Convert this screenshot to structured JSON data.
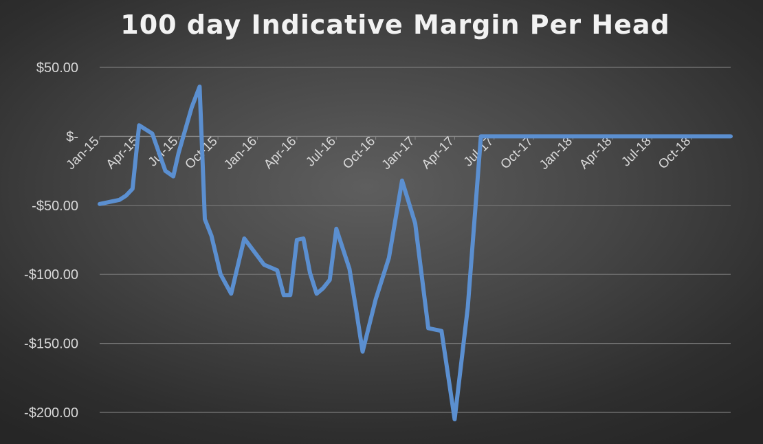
{
  "chart_data": {
    "type": "line",
    "title": "100 day Indicative Margin Per Head",
    "xlabel": "",
    "ylabel": "",
    "ylim": [
      -200,
      50
    ],
    "y_ticks": [
      {
        "value": 50,
        "label": "$50.00"
      },
      {
        "value": 0,
        "label": "$-"
      },
      {
        "value": -50,
        "label": "-$50.00"
      },
      {
        "value": -100,
        "label": "-$100.00"
      },
      {
        "value": -150,
        "label": "-$150.00"
      },
      {
        "value": -200,
        "label": "-$200.00"
      }
    ],
    "x_ticks": [
      {
        "value": 0,
        "label": "Jan-15"
      },
      {
        "value": 3,
        "label": "Apr-15"
      },
      {
        "value": 6,
        "label": "Jul-15"
      },
      {
        "value": 9,
        "label": "Oct-15"
      },
      {
        "value": 12,
        "label": "Jan-16"
      },
      {
        "value": 15,
        "label": "Apr-16"
      },
      {
        "value": 18,
        "label": "Jul-16"
      },
      {
        "value": 21,
        "label": "Oct-16"
      },
      {
        "value": 24,
        "label": "Jan-17"
      },
      {
        "value": 27,
        "label": "Apr-17"
      },
      {
        "value": 30,
        "label": "Jul-17"
      },
      {
        "value": 33,
        "label": "Oct-17"
      },
      {
        "value": 36,
        "label": "Jan-18"
      },
      {
        "value": 39,
        "label": "Apr-18"
      },
      {
        "value": 42,
        "label": "Jul-18"
      },
      {
        "value": 45,
        "label": "Oct-18"
      }
    ],
    "xlim": [
      0,
      48
    ],
    "grid": true,
    "line_color": "#5b8fd0",
    "grid_color": "#7a7a7a",
    "series": [
      {
        "x": [
          0,
          1.5,
          2,
          2.5,
          3,
          4,
          5,
          5.6,
          6,
          7,
          7.6,
          8,
          8.5,
          9.2,
          10,
          11,
          12.5,
          13.5,
          14,
          14.5,
          15,
          15.5,
          16,
          16.5,
          17,
          17.5,
          18,
          19,
          19.5,
          20,
          21,
          22,
          23,
          24,
          25,
          26,
          27,
          28,
          29,
          30,
          31,
          32,
          33,
          34,
          35,
          36,
          36.5,
          37,
          38,
          39,
          40,
          40.7,
          41,
          42,
          43,
          44,
          45,
          46,
          46.5,
          47.5,
          48
        ],
        "y": [
          -49,
          -46,
          -43,
          -38,
          8,
          2,
          -25,
          -29,
          -12,
          21,
          36,
          -60,
          -72,
          -100,
          -114,
          -74,
          -93,
          -97,
          -115,
          -115,
          -75,
          -74,
          -99,
          -114,
          -110,
          -104,
          -67,
          -96,
          -125,
          -156,
          -118,
          -88,
          -32,
          -63,
          -139,
          -141,
          -205,
          -124,
          0,
          0,
          0,
          0,
          0,
          0,
          0,
          0,
          0,
          0,
          0,
          0,
          0,
          0,
          0,
          0,
          0,
          0,
          0,
          0,
          0,
          0,
          0
        ]
      }
    ]
  }
}
